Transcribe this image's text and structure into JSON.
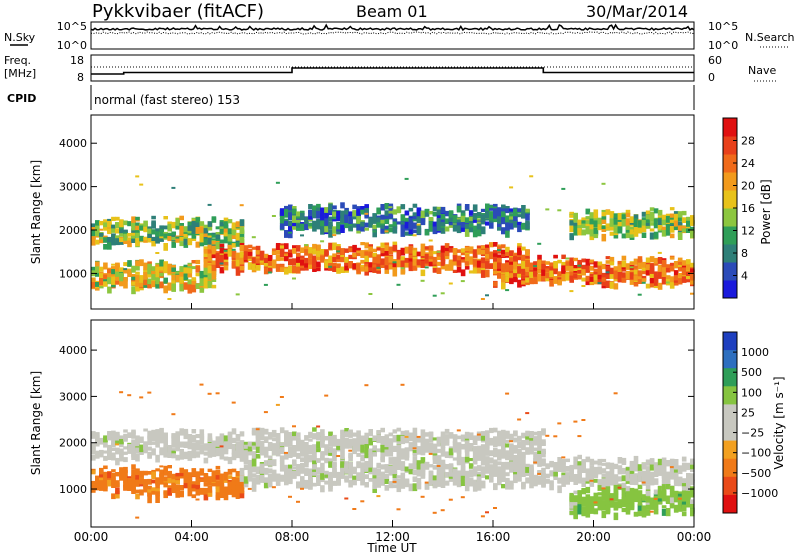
{
  "header": {
    "radar": "Pykkvibaer (fitACF)",
    "beam": "Beam 01",
    "date": "30/Mar/2014"
  },
  "nsky_panel": {
    "left_label": "N.Sky",
    "right_label": "N.Search",
    "left_ticks": [
      "10^5",
      "10^0"
    ],
    "right_ticks": [
      "10^5",
      "10^0"
    ]
  },
  "freq_panel": {
    "left_label_line1": "Freq.",
    "left_label_line2": "[MHz]",
    "right_label": "Nave",
    "left_ticks": [
      "18",
      "8"
    ],
    "right_ticks": [
      "60",
      "0"
    ],
    "freq_steps_ut": [
      [
        0,
        0.4
      ],
      [
        1.3,
        0.55
      ],
      [
        8.0,
        1.0
      ],
      [
        18.0,
        0.55
      ],
      [
        24.0,
        0.55
      ]
    ]
  },
  "cpid_panel": {
    "label": "CPID",
    "mode": "normal (fast stereo) 153"
  },
  "colors": {
    "power_scale": [
      "#1a1adc",
      "#2b4bb8",
      "#2e7f78",
      "#2f9e58",
      "#8cc63f",
      "#e8c21a",
      "#f29a1c",
      "#f06a1a",
      "#e8401a",
      "#e01010"
    ],
    "velocity_scale": [
      "#1e3fbf",
      "#2e6fbf",
      "#2f9e58",
      "#86c440",
      "#c8c8c0",
      "#c8c8c0",
      "#f2a020",
      "#f07a18",
      "#ea4a18",
      "#e01010"
    ]
  },
  "chart_data": [
    {
      "type": "heatmap",
      "title": "",
      "xlabel": "",
      "ylabel": "Slant Range [km]",
      "xlim": [
        "00:00",
        "00:00"
      ],
      "ylim": [
        180,
        4650
      ],
      "y_ticks": [
        "1000",
        "2000",
        "3000",
        "4000"
      ],
      "colorbar": {
        "label": "Power [dB]",
        "ticks": [
          "4",
          "8",
          "12",
          "16",
          "20",
          "24",
          "28"
        ],
        "range": [
          0,
          32
        ]
      },
      "features": [
        {
          "t_start": 0.0,
          "t_end": 6.0,
          "range_center_km": 2000,
          "power_db": 14
        },
        {
          "t_start": 0.0,
          "t_end": 5.0,
          "range_center_km": 1000,
          "power_db": 16
        },
        {
          "t_start": 4.5,
          "t_end": 17.5,
          "range_center_km": 1400,
          "power_db": 24
        },
        {
          "t_start": 16.0,
          "t_end": 24.0,
          "range_center_km": 1100,
          "power_db": 26
        },
        {
          "t_start": 7.5,
          "t_end": 17.5,
          "range_center_km": 2300,
          "power_db": 6
        },
        {
          "t_start": 19.0,
          "t_end": 24.0,
          "range_center_km": 2200,
          "power_db": 14
        }
      ]
    },
    {
      "type": "heatmap",
      "title": "",
      "xlabel": "Time UT",
      "ylabel": "Slant Range [km]",
      "xlim": [
        "00:00",
        "00:00"
      ],
      "ylim": [
        180,
        4650
      ],
      "y_ticks": [
        "1000",
        "2000",
        "3000",
        "4000"
      ],
      "x_ticks": [
        "00:00",
        "04:00",
        "08:00",
        "12:00",
        "16:00",
        "20:00",
        "00:00"
      ],
      "colorbar": {
        "label": "Velocity [m s⁻¹]",
        "ticks": [
          "1000",
          "500",
          "100",
          "25",
          "−25",
          "−100",
          "−500",
          "−1000"
        ]
      },
      "features": [
        {
          "t_start": 0.0,
          "t_end": 6.0,
          "range_center_km": 1200,
          "velocity_ms": -200
        },
        {
          "t_start": 0.0,
          "t_end": 18.0,
          "range_center_km": 2000,
          "velocity_ms": 0
        },
        {
          "t_start": 6.0,
          "t_end": 24.0,
          "range_center_km": 1400,
          "velocity_ms": 0
        },
        {
          "t_start": 19.0,
          "t_end": 24.0,
          "range_center_km": 800,
          "velocity_ms": 150
        }
      ]
    }
  ]
}
